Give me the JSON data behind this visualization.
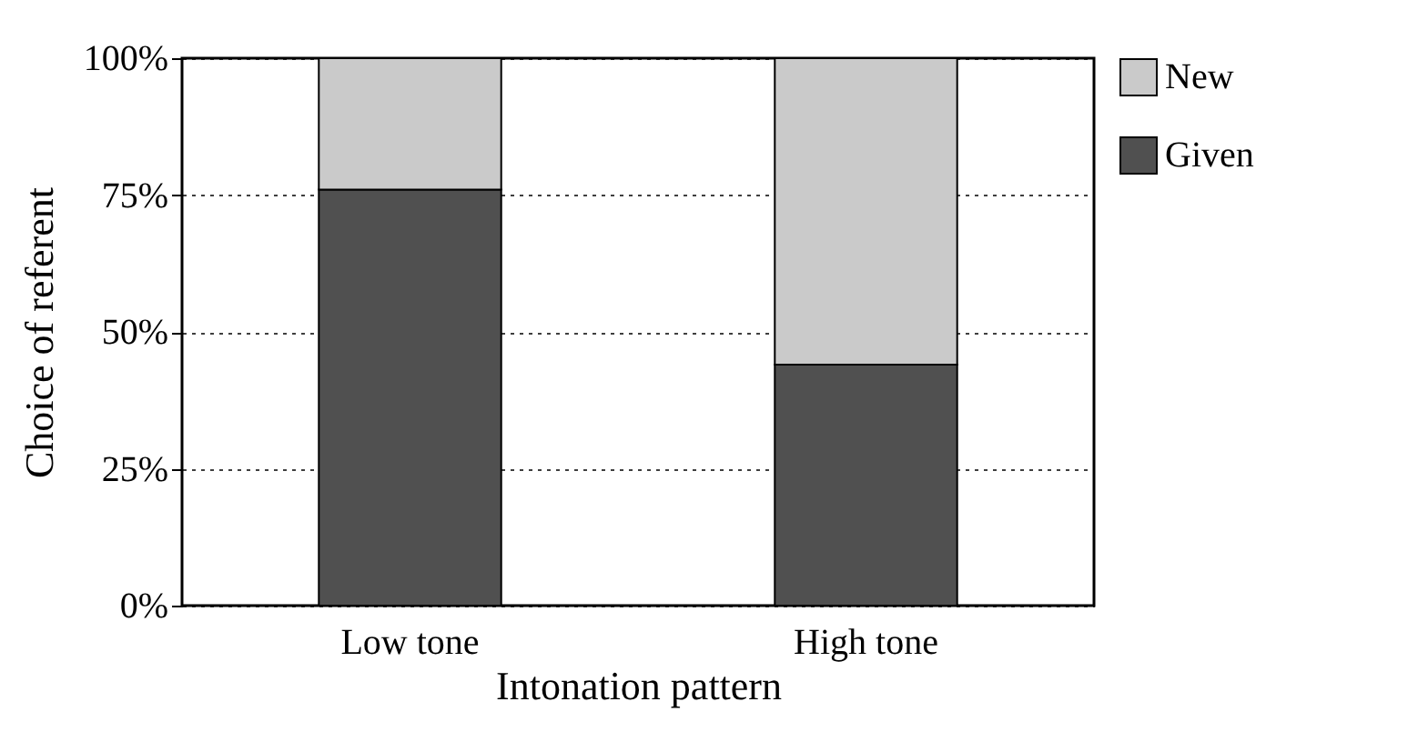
{
  "chart_data": {
    "type": "bar",
    "stacked": true,
    "categories": [
      "Low tone",
      "High tone"
    ],
    "series": [
      {
        "name": "Given",
        "color": "#505050",
        "values": [
          76,
          44
        ]
      },
      {
        "name": "New",
        "color": "#cacaca",
        "values": [
          24,
          56
        ]
      }
    ],
    "xlabel": "Intonation pattern",
    "ylabel": "Choice of referent",
    "ylim": [
      0,
      100
    ],
    "yticks": [
      {
        "value": 0,
        "label": "0%"
      },
      {
        "value": 25,
        "label": "25%"
      },
      {
        "value": 50,
        "label": "50%"
      },
      {
        "value": 75,
        "label": "75%"
      },
      {
        "value": 100,
        "label": "100%"
      }
    ],
    "grid": "y",
    "legend": "right"
  }
}
